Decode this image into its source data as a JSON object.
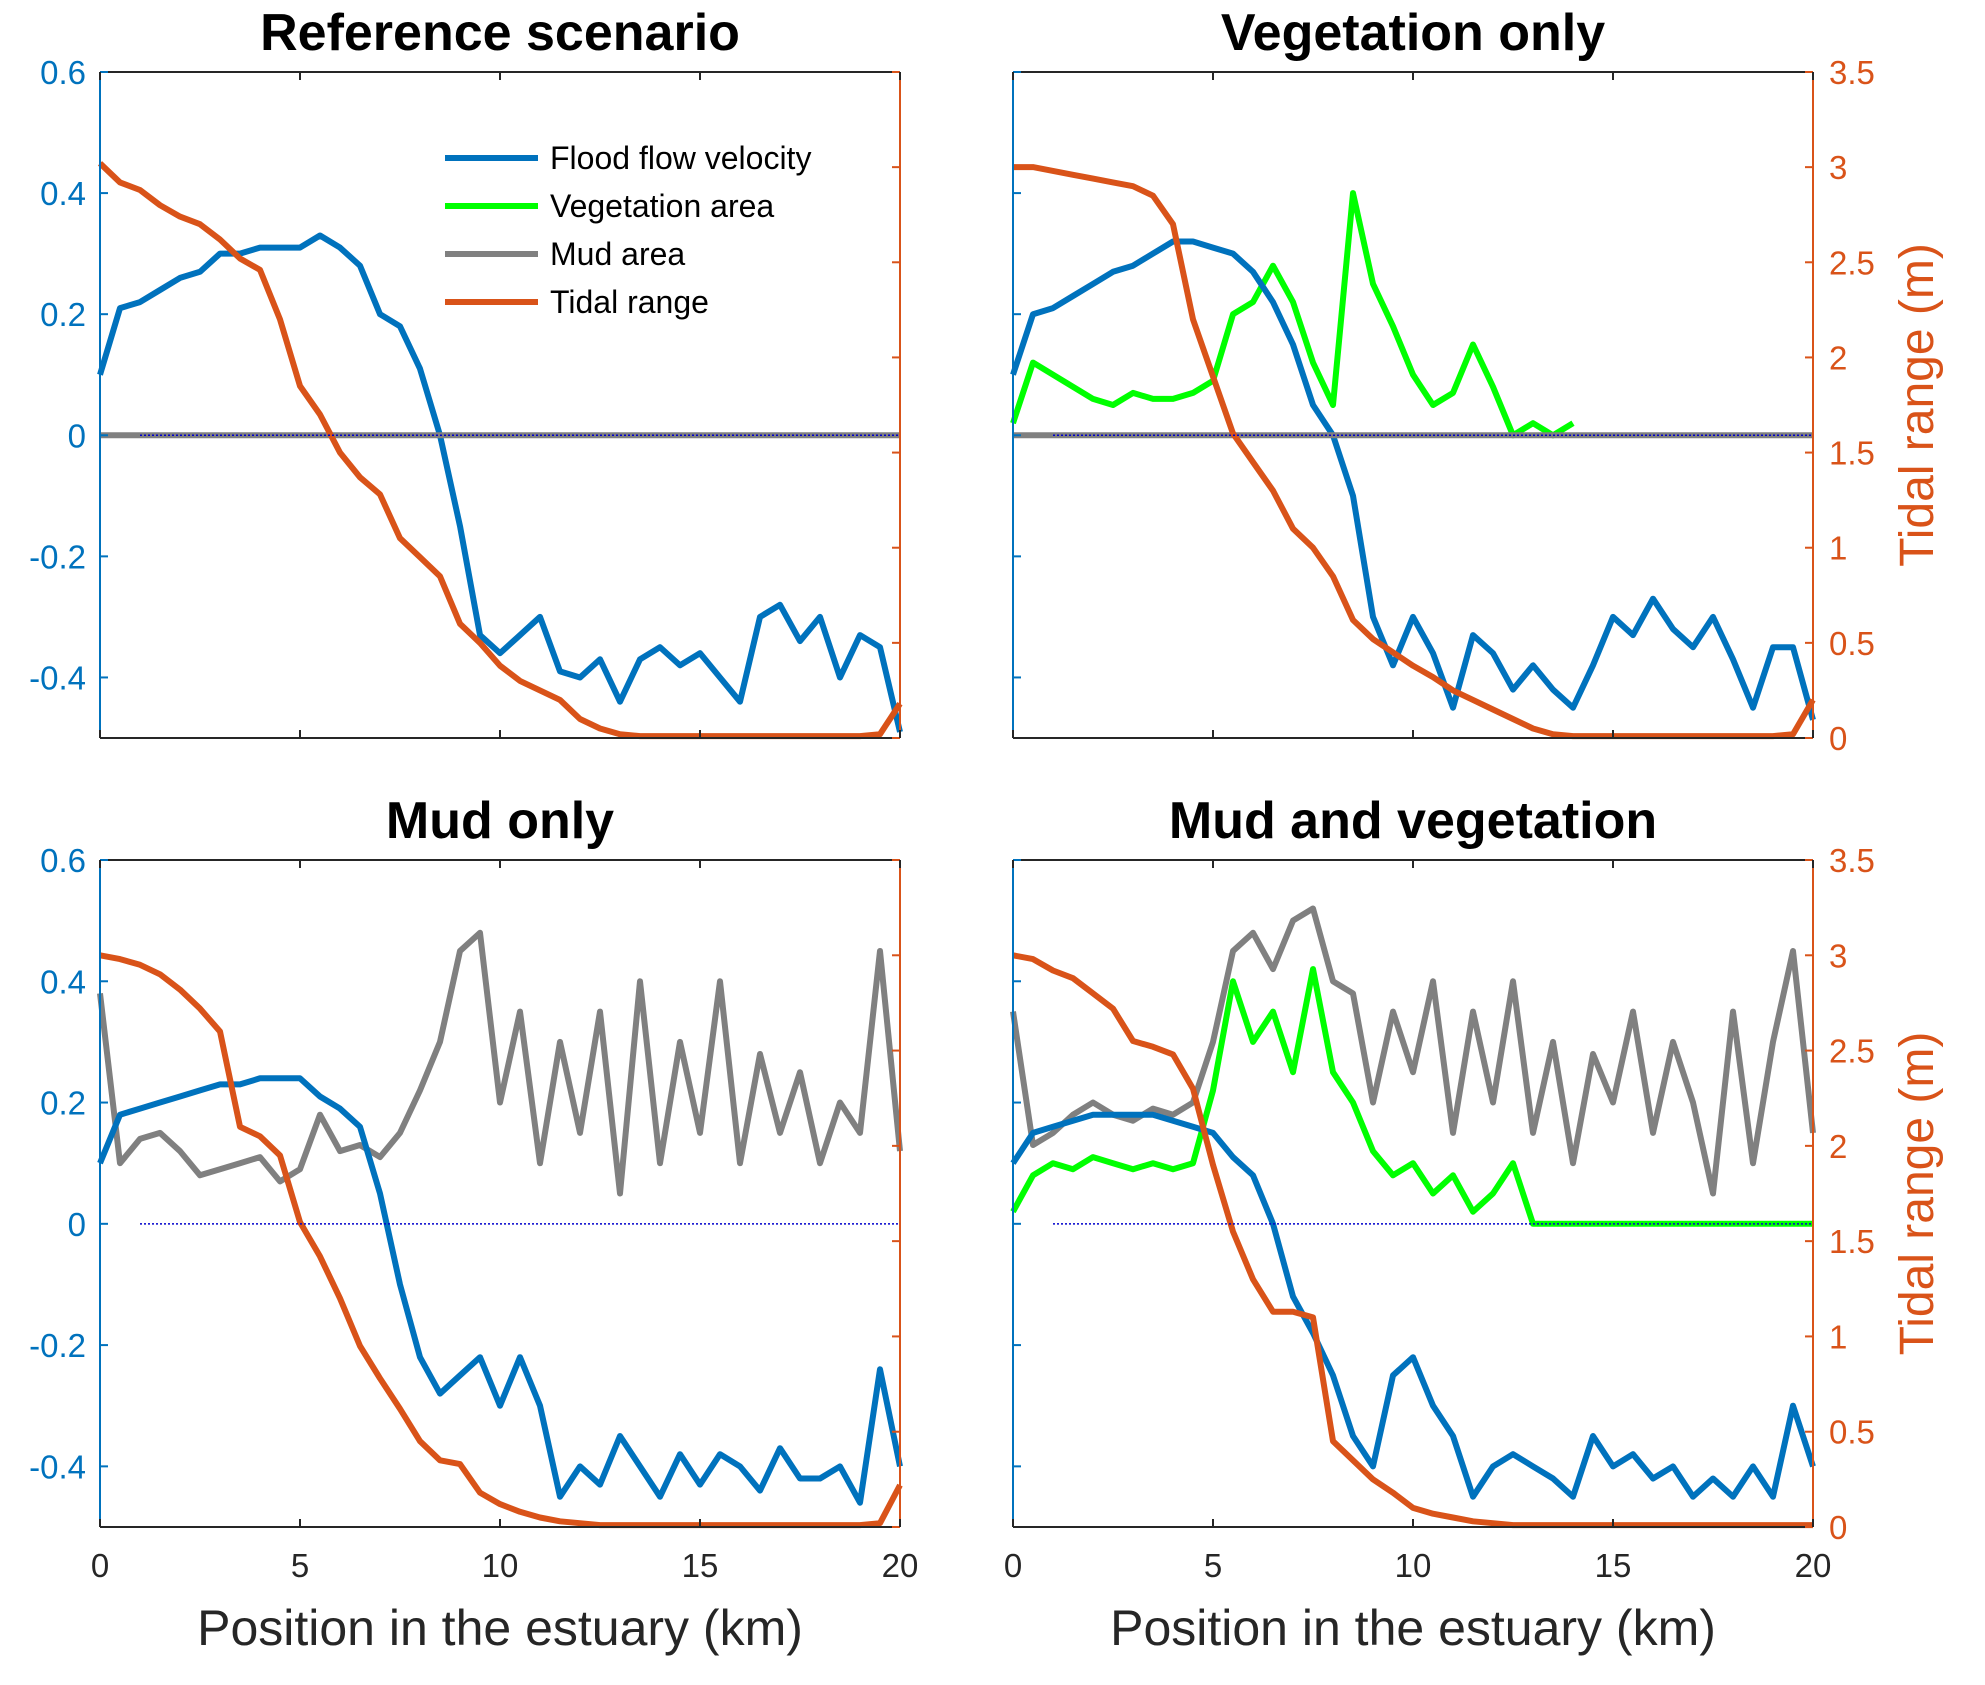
{
  "chart_data": [
    {
      "type": "line",
      "title": "Reference scenario",
      "x": [
        0,
        0.5,
        1,
        1.5,
        2,
        2.5,
        3,
        3.5,
        4,
        4.5,
        5,
        5.5,
        6,
        6.5,
        7,
        7.5,
        8,
        8.5,
        9,
        9.5,
        10,
        10.5,
        11,
        11.5,
        12,
        12.5,
        13,
        13.5,
        14,
        14.5,
        15,
        15.5,
        16,
        16.5,
        17,
        17.5,
        18,
        18.5,
        19,
        19.5,
        20
      ],
      "xlabel": "",
      "xlim": [
        0,
        20
      ],
      "ylim_left": [
        -0.5,
        0.6
      ],
      "ylim_right": [
        0,
        3.5
      ],
      "show_x_ticklabels": false,
      "show_right_ticklabels": false,
      "legend": {
        "placement": "top-right",
        "entries": [
          "Flood flow velocity",
          "Vegetation area",
          "Mud area",
          "Tidal range"
        ]
      },
      "series": [
        {
          "name": "Flood flow velocity",
          "axis": "left",
          "color": "#0072BD",
          "values": [
            0.1,
            0.21,
            0.22,
            0.24,
            0.26,
            0.27,
            0.3,
            0.3,
            0.31,
            0.31,
            0.31,
            0.33,
            0.31,
            0.28,
            0.2,
            0.18,
            0.11,
            0.0,
            -0.15,
            -0.33,
            -0.36,
            -0.33,
            -0.3,
            -0.39,
            -0.4,
            -0.37,
            -0.44,
            -0.37,
            -0.35,
            -0.38,
            -0.36,
            -0.4,
            -0.44,
            -0.3,
            -0.28,
            -0.34,
            -0.3,
            -0.4,
            -0.33,
            -0.35,
            -0.49
          ]
        },
        {
          "name": "Mud area",
          "axis": "left",
          "color": "#808080",
          "values": [
            0,
            0,
            0,
            0,
            0,
            0,
            0,
            0,
            0,
            0,
            0,
            0,
            0,
            0,
            0,
            0,
            0,
            0,
            0,
            0,
            0,
            0,
            0,
            0,
            0,
            0,
            0,
            0,
            0,
            0,
            0,
            0,
            0,
            0,
            0,
            0,
            0,
            0,
            0,
            0,
            0
          ]
        },
        {
          "name": "Tidal range",
          "axis": "right",
          "color": "#D95319",
          "values": [
            3.02,
            2.92,
            2.88,
            2.8,
            2.74,
            2.7,
            2.62,
            2.52,
            2.46,
            2.2,
            1.85,
            1.7,
            1.5,
            1.37,
            1.28,
            1.05,
            0.95,
            0.85,
            0.6,
            0.5,
            0.38,
            0.3,
            0.25,
            0.2,
            0.1,
            0.05,
            0.02,
            0.01,
            0.01,
            0.01,
            0.01,
            0.01,
            0.01,
            0.01,
            0.01,
            0.01,
            0.01,
            0.01,
            0.01,
            0.02,
            0.18
          ]
        }
      ]
    },
    {
      "type": "line",
      "title": "Vegetation only",
      "x": [
        0,
        0.5,
        1,
        1.5,
        2,
        2.5,
        3,
        3.5,
        4,
        4.5,
        5,
        5.5,
        6,
        6.5,
        7,
        7.5,
        8,
        8.5,
        9,
        9.5,
        10,
        10.5,
        11,
        11.5,
        12,
        12.5,
        13,
        13.5,
        14,
        14.5,
        15,
        15.5,
        16,
        16.5,
        17,
        17.5,
        18,
        18.5,
        19,
        19.5,
        20
      ],
      "xlabel": "",
      "xlim": [
        0,
        20
      ],
      "ylim_left": [
        -0.5,
        0.6
      ],
      "ylim_right": [
        0,
        3.5
      ],
      "ylabel_right": "Tidal range (m)",
      "show_x_ticklabels": false,
      "show_right_ticklabels": true,
      "series": [
        {
          "name": "Vegetation area",
          "axis": "left",
          "color": "#00FF00",
          "values": [
            0.02,
            0.12,
            0.1,
            0.08,
            0.06,
            0.05,
            0.07,
            0.06,
            0.06,
            0.07,
            0.09,
            0.2,
            0.22,
            0.28,
            0.22,
            0.12,
            0.05,
            0.4,
            0.25,
            0.18,
            0.1,
            0.05,
            0.07,
            0.15,
            0.08,
            0.0,
            0.02,
            0.0,
            0.02,
            null,
            null,
            null,
            null,
            null,
            null,
            null,
            null,
            null,
            null,
            null,
            null
          ]
        },
        {
          "name": "Flood flow velocity",
          "axis": "left",
          "color": "#0072BD",
          "values": [
            0.1,
            0.2,
            0.21,
            0.23,
            0.25,
            0.27,
            0.28,
            0.3,
            0.32,
            0.32,
            0.31,
            0.3,
            0.27,
            0.22,
            0.15,
            0.05,
            0.0,
            -0.1,
            -0.3,
            -0.38,
            -0.3,
            -0.36,
            -0.45,
            -0.33,
            -0.36,
            -0.42,
            -0.38,
            -0.42,
            -0.45,
            -0.38,
            -0.3,
            -0.33,
            -0.27,
            -0.32,
            -0.35,
            -0.3,
            -0.37,
            -0.45,
            -0.35,
            -0.35,
            -0.47
          ]
        },
        {
          "name": "Mud area",
          "axis": "left",
          "color": "#808080",
          "values": [
            0,
            0,
            0,
            0,
            0,
            0,
            0,
            0,
            0,
            0,
            0,
            0,
            0,
            0,
            0,
            0,
            0,
            0,
            0,
            0,
            0,
            0,
            0,
            0,
            0,
            0,
            0,
            0,
            0,
            0,
            0,
            0,
            0,
            0,
            0,
            0,
            0,
            0,
            0,
            0,
            0
          ]
        },
        {
          "name": "Tidal range",
          "axis": "right",
          "color": "#D95319",
          "values": [
            3.0,
            3.0,
            2.98,
            2.96,
            2.94,
            2.92,
            2.9,
            2.85,
            2.7,
            2.2,
            1.9,
            1.6,
            1.45,
            1.3,
            1.1,
            1.0,
            0.85,
            0.62,
            0.52,
            0.45,
            0.38,
            0.32,
            0.25,
            0.2,
            0.15,
            0.1,
            0.05,
            0.02,
            0.01,
            0.01,
            0.01,
            0.01,
            0.01,
            0.01,
            0.01,
            0.01,
            0.01,
            0.01,
            0.01,
            0.02,
            0.2
          ]
        }
      ]
    },
    {
      "type": "line",
      "title": "Mud only",
      "x": [
        0,
        0.5,
        1,
        1.5,
        2,
        2.5,
        3,
        3.5,
        4,
        4.5,
        5,
        5.5,
        6,
        6.5,
        7,
        7.5,
        8,
        8.5,
        9,
        9.5,
        10,
        10.5,
        11,
        11.5,
        12,
        12.5,
        13,
        13.5,
        14,
        14.5,
        15,
        15.5,
        16,
        16.5,
        17,
        17.5,
        18,
        18.5,
        19,
        19.5,
        20
      ],
      "xlabel": "Position in the estuary (km)",
      "xlim": [
        0,
        20
      ],
      "ylim_left": [
        -0.5,
        0.6
      ],
      "ylim_right": [
        0,
        3.5
      ],
      "show_x_ticklabels": true,
      "show_right_ticklabels": false,
      "series": [
        {
          "name": "Mud area",
          "axis": "left",
          "color": "#808080",
          "values": [
            0.38,
            0.1,
            0.14,
            0.15,
            0.12,
            0.08,
            0.09,
            0.1,
            0.11,
            0.07,
            0.09,
            0.18,
            0.12,
            0.13,
            0.11,
            0.15,
            0.22,
            0.3,
            0.45,
            0.48,
            0.2,
            0.35,
            0.1,
            0.3,
            0.15,
            0.35,
            0.05,
            0.4,
            0.1,
            0.3,
            0.15,
            0.4,
            0.1,
            0.28,
            0.15,
            0.25,
            0.1,
            0.2,
            0.15,
            0.45,
            0.12
          ]
        },
        {
          "name": "Flood flow velocity",
          "axis": "left",
          "color": "#0072BD",
          "values": [
            0.1,
            0.18,
            0.19,
            0.2,
            0.21,
            0.22,
            0.23,
            0.23,
            0.24,
            0.24,
            0.24,
            0.21,
            0.19,
            0.16,
            0.05,
            -0.1,
            -0.22,
            -0.28,
            -0.25,
            -0.22,
            -0.3,
            -0.22,
            -0.3,
            -0.45,
            -0.4,
            -0.43,
            -0.35,
            -0.4,
            -0.45,
            -0.38,
            -0.43,
            -0.38,
            -0.4,
            -0.44,
            -0.37,
            -0.42,
            -0.42,
            -0.4,
            -0.46,
            -0.24,
            -0.4
          ]
        },
        {
          "name": "Tidal range",
          "axis": "right",
          "color": "#D95319",
          "values": [
            3.0,
            2.98,
            2.95,
            2.9,
            2.82,
            2.72,
            2.6,
            2.1,
            2.05,
            1.95,
            1.6,
            1.42,
            1.2,
            0.95,
            0.78,
            0.62,
            0.45,
            0.35,
            0.33,
            0.18,
            0.12,
            0.08,
            0.05,
            0.03,
            0.02,
            0.01,
            0.01,
            0.01,
            0.01,
            0.01,
            0.01,
            0.01,
            0.01,
            0.01,
            0.01,
            0.01,
            0.01,
            0.01,
            0.01,
            0.02,
            0.22
          ]
        }
      ]
    },
    {
      "type": "line",
      "title": "Mud and vegetation",
      "x": [
        0,
        0.5,
        1,
        1.5,
        2,
        2.5,
        3,
        3.5,
        4,
        4.5,
        5,
        5.5,
        6,
        6.5,
        7,
        7.5,
        8,
        8.5,
        9,
        9.5,
        10,
        10.5,
        11,
        11.5,
        12,
        12.5,
        13,
        13.5,
        14,
        14.5,
        15,
        15.5,
        16,
        16.5,
        17,
        17.5,
        18,
        18.5,
        19,
        19.5,
        20
      ],
      "xlabel": "Position in the estuary (km)",
      "xlim": [
        0,
        20
      ],
      "ylim_left": [
        -0.5,
        0.6
      ],
      "ylim_right": [
        0,
        3.5
      ],
      "ylabel_right": "Tidal range (m)",
      "show_x_ticklabels": true,
      "show_right_ticklabels": true,
      "series": [
        {
          "name": "Vegetation area",
          "axis": "left",
          "color": "#00FF00",
          "values": [
            0.02,
            0.08,
            0.1,
            0.09,
            0.11,
            0.1,
            0.09,
            0.1,
            0.09,
            0.1,
            0.22,
            0.4,
            0.3,
            0.35,
            0.25,
            0.42,
            0.25,
            0.2,
            0.12,
            0.08,
            0.1,
            0.05,
            0.08,
            0.02,
            0.05,
            0.1,
            0.0,
            0,
            0,
            0,
            0,
            0,
            0,
            0,
            0,
            0,
            0,
            0,
            0,
            0,
            0
          ]
        },
        {
          "name": "Mud area",
          "axis": "left",
          "color": "#808080",
          "values": [
            0.35,
            0.13,
            0.15,
            0.18,
            0.2,
            0.18,
            0.17,
            0.19,
            0.18,
            0.2,
            0.3,
            0.45,
            0.48,
            0.42,
            0.5,
            0.52,
            0.4,
            0.38,
            0.2,
            0.35,
            0.25,
            0.4,
            0.15,
            0.35,
            0.2,
            0.4,
            0.15,
            0.3,
            0.1,
            0.28,
            0.2,
            0.35,
            0.15,
            0.3,
            0.2,
            0.05,
            0.35,
            0.1,
            0.3,
            0.45,
            0.15
          ]
        },
        {
          "name": "Flood flow velocity",
          "axis": "left",
          "color": "#0072BD",
          "values": [
            0.1,
            0.15,
            0.16,
            0.17,
            0.18,
            0.18,
            0.18,
            0.18,
            0.17,
            0.16,
            0.15,
            0.11,
            0.08,
            0.0,
            -0.12,
            -0.18,
            -0.25,
            -0.35,
            -0.4,
            -0.25,
            -0.22,
            -0.3,
            -0.35,
            -0.45,
            -0.4,
            -0.38,
            -0.4,
            -0.42,
            -0.45,
            -0.35,
            -0.4,
            -0.38,
            -0.42,
            -0.4,
            -0.45,
            -0.42,
            -0.45,
            -0.4,
            -0.45,
            -0.3,
            -0.4
          ]
        },
        {
          "name": "Tidal range",
          "axis": "right",
          "color": "#D95319",
          "values": [
            3.0,
            2.98,
            2.92,
            2.88,
            2.8,
            2.72,
            2.55,
            2.52,
            2.48,
            2.3,
            1.9,
            1.55,
            1.3,
            1.13,
            1.13,
            1.1,
            0.45,
            0.35,
            0.25,
            0.18,
            0.1,
            0.07,
            0.05,
            0.03,
            0.02,
            0.01,
            0.01,
            0.01,
            0.01,
            0.01,
            0.01,
            0.01,
            0.01,
            0.01,
            0.01,
            0.01,
            0.01,
            0.01,
            0.01,
            0.01,
            0.01
          ]
        }
      ]
    }
  ],
  "axis_colors": {
    "left": "#0072BD",
    "right": "#D95319"
  },
  "ticks": {
    "x": [
      "0",
      "5",
      "10",
      "15",
      "20"
    ],
    "left": [
      "-0.4",
      "-0.2",
      "0",
      "0.2",
      "0.4",
      "0.6"
    ],
    "right": [
      "0",
      "0.5",
      "1",
      "1.5",
      "2",
      "2.5",
      "3",
      "3.5"
    ]
  }
}
